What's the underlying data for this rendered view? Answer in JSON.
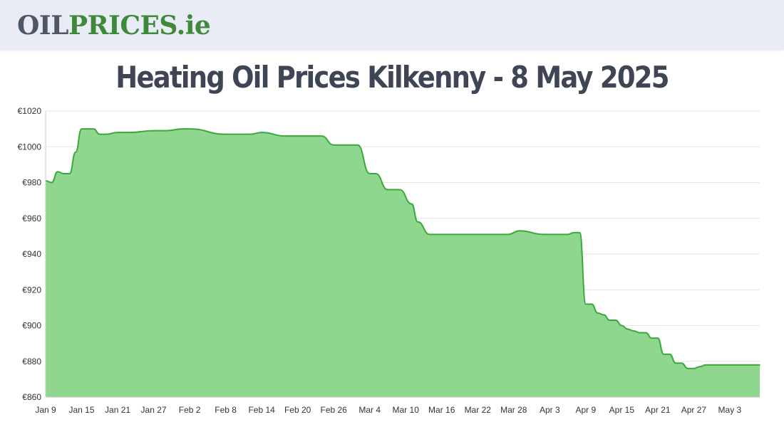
{
  "header": {
    "logo_part1": "OIL",
    "logo_part2": "PRICES",
    "logo_part3": ".ie"
  },
  "colors": {
    "logo_grey": "#4e5766",
    "logo_green": "#3c8a3a",
    "area_fill": "#8fd78f",
    "line": "#3aa83a",
    "grid": "#e6e6e6",
    "title": "#3e4656"
  },
  "chart_data": {
    "type": "area",
    "title": "Heating Oil Prices Kilkenny - 8 May 2025",
    "xlabel": "",
    "ylabel": "",
    "grid": true,
    "ylim": [
      860,
      1020
    ],
    "y_ticks": [
      860,
      880,
      900,
      920,
      940,
      960,
      980,
      1000,
      1020
    ],
    "y_tick_prefix": "€",
    "x_range": [
      "2025-01-09",
      "2025-05-08"
    ],
    "x_ticks": [
      "Jan 9",
      "Jan 15",
      "Jan 21",
      "Jan 27",
      "Feb 2",
      "Feb 8",
      "Feb 14",
      "Feb 20",
      "Feb 26",
      "Mar 4",
      "Mar 10",
      "Mar 16",
      "Mar 22",
      "Mar 28",
      "Apr 3",
      "Apr 9",
      "Apr 15",
      "Apr 21",
      "Apr 27",
      "May 3"
    ],
    "series": [
      {
        "x": [
          "2025-01-09",
          "2025-01-10",
          "2025-01-11",
          "2025-01-12",
          "2025-01-13",
          "2025-01-14",
          "2025-01-15",
          "2025-01-16",
          "2025-01-17",
          "2025-01-18",
          "2025-01-19",
          "2025-01-21",
          "2025-01-23",
          "2025-01-27",
          "2025-01-29",
          "2025-02-01",
          "2025-02-02",
          "2025-02-08",
          "2025-02-12",
          "2025-02-14",
          "2025-02-18",
          "2025-02-19",
          "2025-02-24",
          "2025-02-26",
          "2025-02-27",
          "2025-03-02",
          "2025-03-04",
          "2025-03-05",
          "2025-03-07",
          "2025-03-09",
          "2025-03-11",
          "2025-03-12",
          "2025-03-14",
          "2025-03-21",
          "2025-03-25",
          "2025-03-27",
          "2025-03-29",
          "2025-04-02",
          "2025-04-05",
          "2025-04-06",
          "2025-04-07",
          "2025-04-08",
          "2025-04-09",
          "2025-04-10",
          "2025-04-11",
          "2025-04-12",
          "2025-04-13",
          "2025-04-14",
          "2025-04-15",
          "2025-04-16",
          "2025-04-17",
          "2025-04-18",
          "2025-04-19",
          "2025-04-20",
          "2025-04-21",
          "2025-04-22",
          "2025-04-23",
          "2025-04-24",
          "2025-04-25",
          "2025-04-26",
          "2025-04-27",
          "2025-04-28",
          "2025-04-29",
          "2025-04-30",
          "2025-05-01",
          "2025-05-02",
          "2025-05-03",
          "2025-05-08"
        ],
        "values": [
          981,
          980,
          986,
          985,
          985,
          997,
          1010,
          1010,
          1010,
          1007,
          1007,
          1008,
          1008,
          1009,
          1009,
          1010,
          1010,
          1007,
          1007,
          1008,
          1006,
          1006,
          1006,
          1001,
          1001,
          1001,
          985,
          985,
          976,
          976,
          968,
          958,
          951,
          951,
          951,
          951,
          953,
          951,
          951,
          951,
          952,
          952,
          912,
          912,
          907,
          906,
          903,
          903,
          900,
          898,
          897,
          896,
          896,
          893,
          893,
          884,
          884,
          879,
          879,
          876,
          876,
          877,
          878,
          878,
          878,
          878,
          878,
          878
        ]
      }
    ]
  }
}
